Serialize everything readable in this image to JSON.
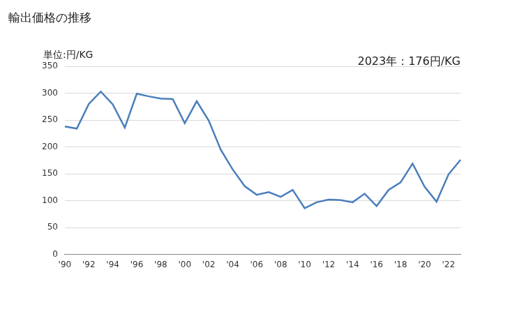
{
  "chart_data": {
    "type": "line",
    "title": "輸出価格の推移",
    "ylabel": "単位:円/KG",
    "annotation": "2023年：176円/KG",
    "categories": [
      "'90",
      null,
      "'92",
      null,
      "'94",
      null,
      "'96",
      null,
      "'98",
      null,
      "'00",
      null,
      "'02",
      null,
      "'04",
      null,
      "'06",
      null,
      "'08",
      null,
      "'10",
      null,
      "'12",
      null,
      "'14",
      null,
      "'16",
      null,
      "'18",
      null,
      "'20",
      null,
      "'22",
      null
    ],
    "values": [
      238,
      234,
      280,
      303,
      279,
      236,
      299,
      294,
      290,
      289,
      244,
      285,
      249,
      195,
      158,
      127,
      111,
      116,
      107,
      120,
      86,
      97,
      102,
      101,
      97,
      113,
      90,
      120,
      134,
      169,
      126,
      98,
      149,
      176
    ],
    "color": "#4a7ebb",
    "ylim": [
      0,
      350
    ],
    "yticks": [
      0,
      50,
      100,
      150,
      200,
      250,
      300,
      350
    ],
    "grid": true
  }
}
